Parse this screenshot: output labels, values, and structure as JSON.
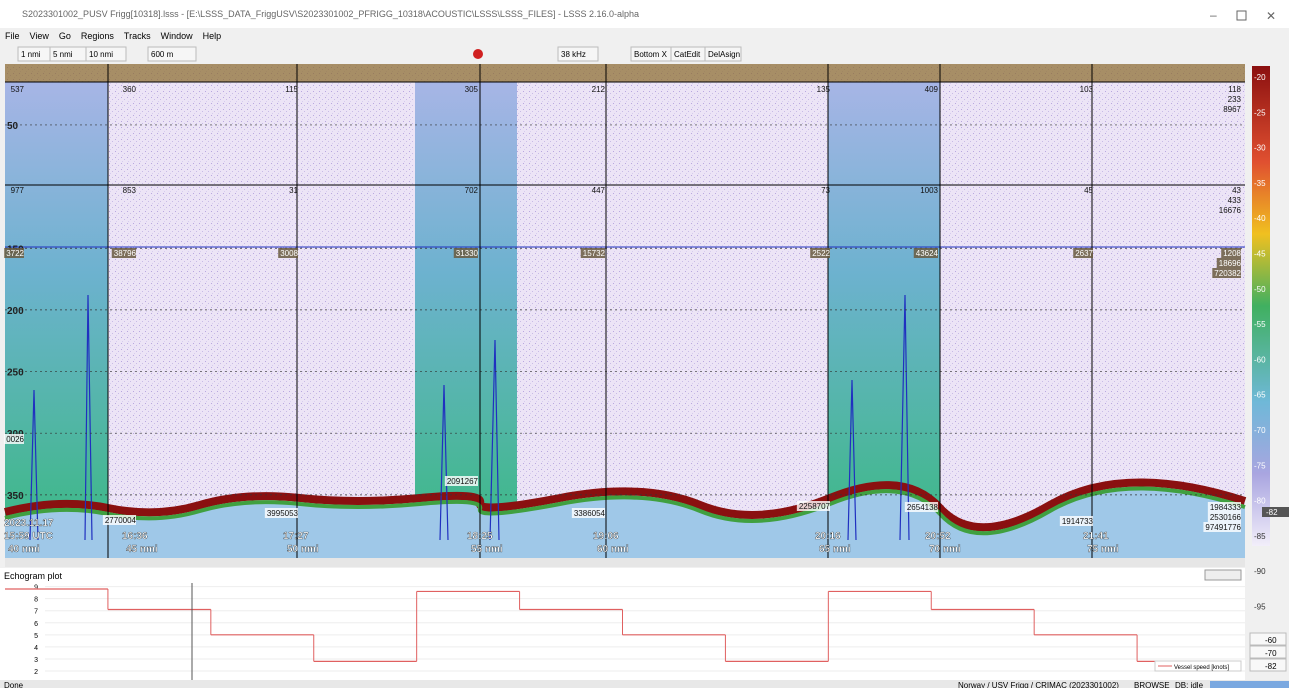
{
  "window": {
    "title": "S2023301002_PUSV Frigg[10318].lsss - [E:\\LSSS_DATA_FriggUSV\\S2023301002_PFRIGG_10318\\ACOUSTIC\\LSSS\\LSSS_FILES] - LSSS 2.16.0-alpha"
  },
  "menu": [
    "File",
    "View",
    "Go",
    "Regions",
    "Tracks",
    "Window",
    "Help"
  ],
  "toolbar": {
    "ranges": [
      "1 nmi",
      "5 nmi",
      "10 nmi"
    ],
    "depth": "600 m",
    "frequency": "38 kHz",
    "buttons": [
      "Bottom X",
      "CatEdit",
      "DelAsign"
    ]
  },
  "echogram": {
    "depth_ticks": [
      50,
      150,
      200,
      250,
      300,
      350
    ],
    "row1": [
      "537",
      "360",
      "115",
      "305",
      "212",
      "135",
      "409",
      "103",
      [
        "118",
        "233",
        "8967"
      ]
    ],
    "row2": [
      "977",
      "853",
      "31",
      "702",
      "447",
      "73",
      "1003",
      "45",
      [
        "43",
        "433",
        "16676"
      ]
    ],
    "row3": [
      "3722",
      "38796",
      "3008",
      "31330",
      "15732",
      "2522",
      "43624",
      "2637",
      [
        "1208",
        "18696",
        "720382"
      ]
    ],
    "row4": [
      "0026",
      "2770004",
      "3995053",
      "2091267",
      "3386054",
      "2258707",
      "2654138",
      "1914733",
      [
        "1984333",
        "2530166",
        "97491776"
      ]
    ],
    "date": "2023.11.17",
    "times": [
      "15:59 UTC",
      "16:36",
      "17:27",
      "18:25",
      "19:06",
      "20:16",
      "20:52",
      "21:41"
    ],
    "distances": [
      "40 nmi",
      "45 nmi",
      "50 nmi",
      "55 nmi",
      "60 nmi",
      "65 nmi",
      "70 nmi",
      "75 nmi"
    ],
    "color_scale": [
      "-20",
      "-25",
      "-30",
      "-35",
      "-40",
      "-45",
      "-50",
      "-55",
      "-60",
      "-65",
      "-70",
      "-75",
      "-80",
      "-85",
      "-90",
      "-95"
    ],
    "color_scale_marker": "-82",
    "color_scale_bottom": [
      "-60",
      "-70",
      "-82"
    ]
  },
  "plot": {
    "title": "Echogram plot",
    "legend": "Vessel speed [knots]",
    "yticks": [
      2,
      3,
      4,
      5,
      6,
      7,
      8,
      9
    ],
    "ylim": [
      2,
      9.3
    ],
    "values": [
      8.8,
      7.1,
      5.0,
      2.8,
      8.6,
      7.1,
      5.0,
      2.8,
      8.6,
      7.1,
      5.0,
      2.8
    ]
  },
  "status": {
    "left": "Done",
    "survey": "Norway / USV Frigg / CRIMAC (2023301002)",
    "mode": "BROWSE",
    "db": "DB: idle"
  }
}
